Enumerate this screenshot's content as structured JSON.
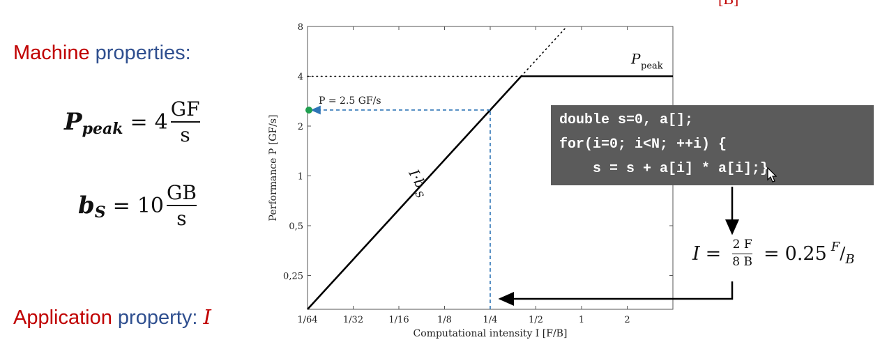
{
  "slide": {
    "top_clip_text": "[B]",
    "machine_heading": {
      "part1": "Machine",
      "part2": " properties:"
    },
    "ppeak_eq": {
      "lhs": "P",
      "sub": "peak",
      "eq": "=",
      "value": "4",
      "unit_num": "GF",
      "unit_den": "s"
    },
    "bs_eq": {
      "lhs": "b",
      "sub": "S",
      "eq": "=",
      "value": "10",
      "unit_num": "GB",
      "unit_den": "s"
    },
    "app_heading": {
      "part1": "Application",
      "part2": " property: ",
      "var": "I"
    },
    "code": {
      "line1": "double s=0, a[];",
      "line2": "for(i=0; i<N; ++i) {",
      "line3": "    s = s + a[i] * a[i];}"
    },
    "intensity_eq": {
      "lhs": "I",
      "eq1": "=",
      "frac_num": "2 F",
      "frac_den": "8 B",
      "eq2": "=",
      "value": "0.25",
      "unit_num": "F",
      "slash": "/",
      "unit_den": "B"
    },
    "colors": {
      "red": "#c00000",
      "blue": "#2f4f8f",
      "guide": "#2e75b6",
      "marker": "#1fa050",
      "code_bg": "#5b5b5b"
    },
    "icons": [
      "arrow-pointer-icon"
    ]
  },
  "chart_data": {
    "type": "line",
    "xscale": "log2",
    "yscale": "log2",
    "x_ticks": [
      {
        "v": 0.015625,
        "label": "1/64"
      },
      {
        "v": 0.03125,
        "label": "1/32"
      },
      {
        "v": 0.0625,
        "label": "1/16"
      },
      {
        "v": 0.125,
        "label": "1/8"
      },
      {
        "v": 0.25,
        "label": "1/4"
      },
      {
        "v": 0.5,
        "label": "1/2"
      },
      {
        "v": 1,
        "label": "1"
      },
      {
        "v": 2,
        "label": "2"
      }
    ],
    "y_ticks": [
      {
        "v": 0.25,
        "label": "0,25"
      },
      {
        "v": 0.5,
        "label": "0,5"
      },
      {
        "v": 1,
        "label": "1"
      },
      {
        "v": 2,
        "label": "2"
      },
      {
        "v": 4,
        "label": "4"
      },
      {
        "v": 8,
        "label": "8"
      }
    ],
    "xlim": [
      0.015625,
      4
    ],
    "ylim": [
      0.15625,
      8
    ],
    "xlabel": "Computational intensity I [F/B]",
    "ylabel": "Performance P [GF/s]",
    "roofline": {
      "x": [
        0.015625,
        0.4,
        4
      ],
      "y": [
        0.15625,
        4,
        4
      ]
    },
    "peak_extension": {
      "x": [
        0.015625,
        0.4
      ],
      "y": [
        4,
        4
      ]
    },
    "bandwidth_extension": {
      "x": [
        0.4,
        0.8
      ],
      "y": [
        4,
        8
      ]
    },
    "operating_point": {
      "x": 0.25,
      "y": 2.5,
      "label": "P = 2.5 GF/s"
    },
    "annotations": {
      "ppeak_label": "P",
      "ppeak_sub": "peak",
      "slope_label": "I·b",
      "slope_sub": "S"
    }
  }
}
